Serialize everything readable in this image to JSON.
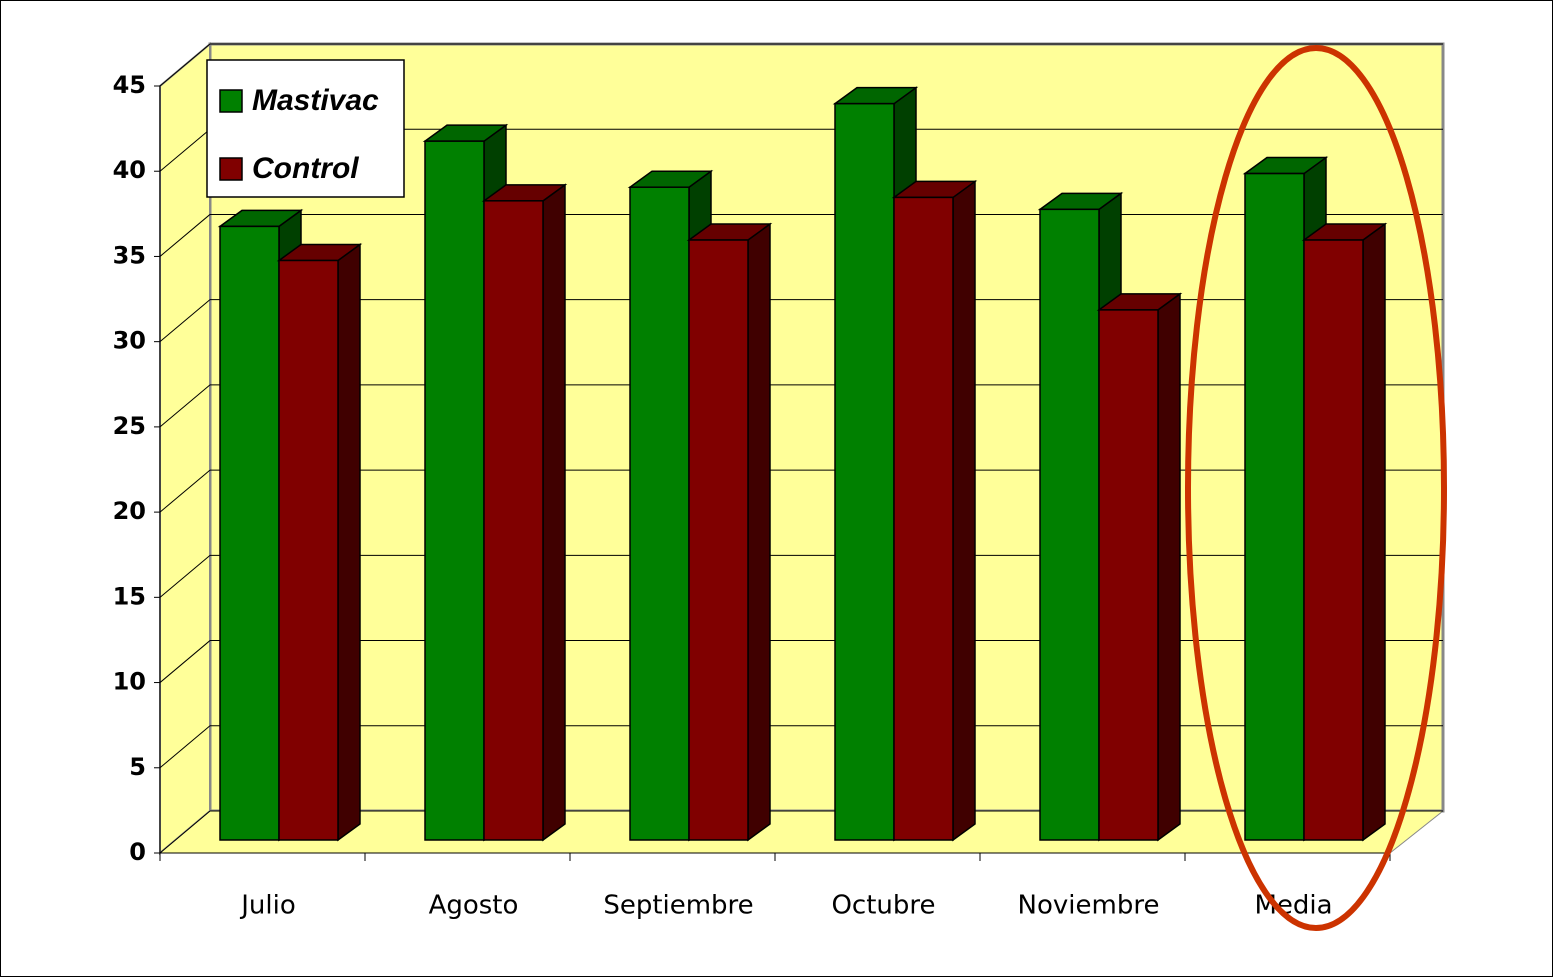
{
  "chart_data": {
    "type": "bar3d",
    "categories": [
      "Julio",
      "Agosto",
      "Septiembre",
      "Octubre",
      "Noviembre",
      "Media"
    ],
    "series": [
      {
        "name": "Mastivac",
        "color": "#008000",
        "values": [
          36,
          41,
          38.3,
          43.2,
          37,
          39.1
        ]
      },
      {
        "name": "Control",
        "color": "#800000",
        "values": [
          34,
          37.5,
          35.2,
          37.7,
          31.1,
          35.2
        ]
      }
    ],
    "ylim": [
      0,
      45
    ],
    "yticks": [
      0,
      5,
      10,
      15,
      20,
      25,
      30,
      35,
      40,
      45
    ],
    "grid": true,
    "legend": "upper-left",
    "wall_color": "#ffff99"
  }
}
